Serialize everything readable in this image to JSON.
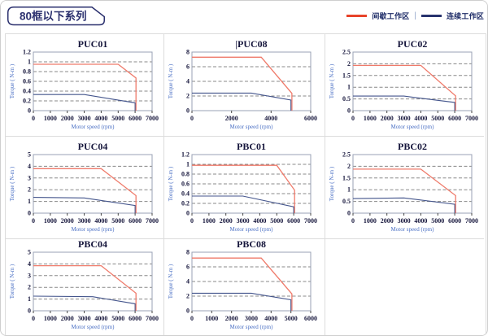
{
  "header": {
    "title": "80框以下系列"
  },
  "legend": {
    "items": [
      {
        "label": "间歇工作区",
        "color": "#e8432a"
      },
      {
        "label": "连续工作区",
        "color": "#27336e"
      }
    ],
    "separator": "|"
  },
  "colors": {
    "chart_red": "#ef7a6a",
    "chart_blue": "#44558c",
    "grid_line": "#888888",
    "plot_border": "#98a2b4",
    "tick_text": "#16163c",
    "axis_label_blue": "#4a6fc4",
    "cell_border": "#dcdcdc",
    "canvas_border": "#cfcfcf",
    "badge_navy": "#2b306e"
  },
  "chart_data": [
    {
      "type": "line",
      "title": "PUC01",
      "cursor": false,
      "xlabel": "Motor speed (rpm)",
      "ylabel": "Torque ( N-m )",
      "ylim": [
        0,
        1.2
      ],
      "yticks": [
        0,
        0.2,
        0.4,
        0.6,
        0.8,
        1,
        1.2
      ],
      "xlim": [
        0,
        7000
      ],
      "xticks": [
        0,
        1000,
        2000,
        3000,
        4000,
        5000,
        6000,
        7000
      ],
      "series": [
        {
          "name": "间歇工作区",
          "color_key": "red",
          "points": [
            [
              0,
              0.95
            ],
            [
              5000,
              0.95
            ],
            [
              6050,
              0.67
            ],
            [
              6050,
              0
            ]
          ]
        },
        {
          "name": "连续工作区",
          "color_key": "blue",
          "points": [
            [
              0,
              0.33
            ],
            [
              3000,
              0.33
            ],
            [
              6000,
              0.16
            ],
            [
              6000,
              0
            ]
          ]
        }
      ]
    },
    {
      "type": "line",
      "title": "PUC08",
      "cursor": true,
      "xlabel": "Motor speed (rpm)",
      "ylabel": "Torque ( N-m )",
      "ylim": [
        0,
        8
      ],
      "yticks": [
        0,
        2,
        4,
        6,
        8
      ],
      "xlim": [
        0,
        6000
      ],
      "xticks": [
        0,
        2000,
        4000,
        6000
      ],
      "series": [
        {
          "name": "间歇工作区",
          "color_key": "red",
          "points": [
            [
              0,
              7.3
            ],
            [
              3500,
              7.3
            ],
            [
              5050,
              2.35
            ],
            [
              5050,
              0
            ]
          ]
        },
        {
          "name": "连续工作区",
          "color_key": "blue",
          "points": [
            [
              0,
              2.4
            ],
            [
              3000,
              2.4
            ],
            [
              5000,
              1.45
            ],
            [
              5000,
              0
            ]
          ]
        }
      ]
    },
    {
      "type": "line",
      "title": "PUC02",
      "cursor": false,
      "xlabel": "Motor speed (rpm)",
      "ylabel": "Torque ( N-m )",
      "ylim": [
        0,
        2.5
      ],
      "yticks": [
        0,
        0.5,
        1,
        1.5,
        2,
        2.5
      ],
      "xlim": [
        0,
        7000
      ],
      "xticks": [
        0,
        1000,
        2000,
        3000,
        4000,
        5000,
        6000,
        7000
      ],
      "series": [
        {
          "name": "间歇工作区",
          "color_key": "red",
          "points": [
            [
              0,
              1.93
            ],
            [
              4000,
              1.93
            ],
            [
              6050,
              0.63
            ],
            [
              6050,
              0
            ]
          ]
        },
        {
          "name": "连续工作区",
          "color_key": "blue",
          "points": [
            [
              0,
              0.62
            ],
            [
              3000,
              0.62
            ],
            [
              6000,
              0.35
            ],
            [
              6000,
              0
            ]
          ]
        }
      ]
    },
    {
      "type": "line",
      "title": "PUC04",
      "cursor": false,
      "xlabel": "Motor speed (rpm)",
      "ylabel": "Torque ( N-m )",
      "ylim": [
        0,
        5
      ],
      "yticks": [
        0,
        1,
        2,
        3,
        4,
        5
      ],
      "xlim": [
        0,
        7000
      ],
      "xticks": [
        0,
        1000,
        2000,
        3000,
        4000,
        5000,
        6000,
        7000
      ],
      "series": [
        {
          "name": "间歇工作区",
          "color_key": "red",
          "points": [
            [
              0,
              3.8
            ],
            [
              4000,
              3.8
            ],
            [
              6050,
              1.5
            ],
            [
              6050,
              0
            ]
          ]
        },
        {
          "name": "连续工作区",
          "color_key": "blue",
          "points": [
            [
              0,
              1.35
            ],
            [
              3000,
              1.3
            ],
            [
              6000,
              0.65
            ],
            [
              6000,
              0
            ]
          ]
        }
      ]
    },
    {
      "type": "line",
      "title": "PBC01",
      "cursor": false,
      "xlabel": "Motor speed (rpm)",
      "ylabel": "Torque ( N-m )",
      "ylim": [
        0,
        1.2
      ],
      "yticks": [
        0,
        0.2,
        0.4,
        0.6,
        0.8,
        1,
        1.2
      ],
      "xlim": [
        0,
        7000
      ],
      "xticks": [
        0,
        1000,
        2000,
        3000,
        4000,
        5000,
        6000,
        7000
      ],
      "series": [
        {
          "name": "间歇工作区",
          "color_key": "red",
          "points": [
            [
              0,
              0.98
            ],
            [
              5000,
              0.98
            ],
            [
              6050,
              0.47
            ],
            [
              6050,
              0
            ]
          ]
        },
        {
          "name": "连续工作区",
          "color_key": "blue",
          "points": [
            [
              0,
              0.35
            ],
            [
              3000,
              0.35
            ],
            [
              6000,
              0.13
            ],
            [
              6000,
              0
            ]
          ]
        }
      ]
    },
    {
      "type": "line",
      "title": "PBC02",
      "cursor": false,
      "xlabel": "Motor speed (rpm)",
      "ylabel": "Torque ( N-m )",
      "ylim": [
        0,
        2.5
      ],
      "yticks": [
        0,
        0.5,
        1,
        1.5,
        2,
        2.5
      ],
      "xlim": [
        0,
        7000
      ],
      "xticks": [
        0,
        1000,
        2000,
        3000,
        4000,
        5000,
        6000,
        7000
      ],
      "series": [
        {
          "name": "间歇工作区",
          "color_key": "red",
          "points": [
            [
              0,
              1.88
            ],
            [
              4000,
              1.88
            ],
            [
              6050,
              0.75
            ],
            [
              6050,
              0
            ]
          ]
        },
        {
          "name": "连续工作区",
          "color_key": "blue",
          "points": [
            [
              0,
              0.62
            ],
            [
              3000,
              0.65
            ],
            [
              6000,
              0.38
            ],
            [
              6000,
              0
            ]
          ]
        }
      ]
    },
    {
      "type": "line",
      "title": "PBC04",
      "cursor": false,
      "xlabel": "Motor speed (rpm)",
      "ylabel": "Torque ( N-m )",
      "ylim": [
        0,
        5
      ],
      "yticks": [
        0,
        1,
        2,
        3,
        4,
        5
      ],
      "xlim": [
        0,
        7000
      ],
      "xticks": [
        0,
        1000,
        2000,
        3000,
        4000,
        5000,
        6000,
        7000
      ],
      "series": [
        {
          "name": "间歇工作区",
          "color_key": "red",
          "points": [
            [
              0,
              3.85
            ],
            [
              4000,
              3.85
            ],
            [
              6050,
              1.5
            ],
            [
              6050,
              0
            ]
          ]
        },
        {
          "name": "连续工作区",
          "color_key": "blue",
          "points": [
            [
              0,
              1.25
            ],
            [
              3500,
              1.2
            ],
            [
              6000,
              0.6
            ],
            [
              6000,
              0
            ]
          ]
        }
      ]
    },
    {
      "type": "line",
      "title": "PBC08",
      "cursor": false,
      "xlabel": "Motor speed (rpm)",
      "ylabel": "Torque ( N-m )",
      "ylim": [
        0,
        8
      ],
      "yticks": [
        0,
        2,
        4,
        6,
        8
      ],
      "xlim": [
        0,
        6000
      ],
      "xticks": [
        0,
        1000,
        2000,
        3000,
        4000,
        5000,
        6000
      ],
      "series": [
        {
          "name": "间歇工作区",
          "color_key": "red",
          "points": [
            [
              0,
              7.2
            ],
            [
              3500,
              7.2
            ],
            [
              5050,
              2.3
            ],
            [
              5050,
              0
            ]
          ]
        },
        {
          "name": "连续工作区",
          "color_key": "blue",
          "points": [
            [
              0,
              2.4
            ],
            [
              3000,
              2.4
            ],
            [
              5000,
              1.5
            ],
            [
              5000,
              0
            ]
          ]
        }
      ]
    }
  ]
}
